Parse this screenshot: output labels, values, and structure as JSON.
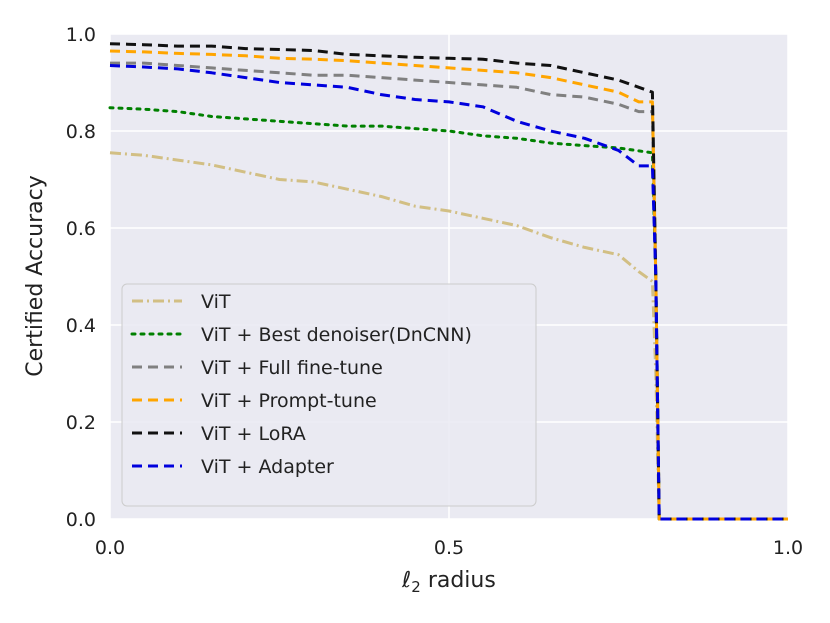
{
  "chart_data": {
    "type": "line",
    "title": "",
    "xlabel_var": "ℓ",
    "xlabel_sub": "2",
    "xlabel_rest": "radius",
    "ylabel": "Certified Accuracy",
    "xlim": [
      0.0,
      1.0
    ],
    "ylim": [
      0.0,
      1.0
    ],
    "xticks": [
      0.0,
      0.5,
      1.0
    ],
    "xtick_labels": [
      "0.0",
      "0.5",
      "1.0"
    ],
    "yticks": [
      0.0,
      0.2,
      0.4,
      0.6,
      0.8,
      1.0
    ],
    "ytick_labels": [
      "0.0",
      "0.2",
      "0.4",
      "0.6",
      "0.8",
      "1.0"
    ],
    "grid": true,
    "legend_position": "lower-left",
    "series": [
      {
        "name": "ViT",
        "color": "#d2bf84",
        "dash": "dashdot",
        "x": [
          0.0,
          0.05,
          0.1,
          0.15,
          0.2,
          0.25,
          0.3,
          0.35,
          0.4,
          0.45,
          0.5,
          0.55,
          0.6,
          0.65,
          0.7,
          0.75,
          0.78,
          0.8,
          0.805,
          0.81,
          1.0
        ],
        "y": [
          0.755,
          0.75,
          0.74,
          0.73,
          0.715,
          0.7,
          0.695,
          0.68,
          0.665,
          0.645,
          0.635,
          0.62,
          0.605,
          0.58,
          0.56,
          0.545,
          0.51,
          0.49,
          0.3,
          0.0,
          0.0
        ]
      },
      {
        "name": "ViT + Best denoiser(DnCNN)",
        "color": "#008000",
        "dash": "dotted",
        "x": [
          0.0,
          0.05,
          0.1,
          0.15,
          0.2,
          0.25,
          0.3,
          0.35,
          0.4,
          0.45,
          0.5,
          0.55,
          0.6,
          0.65,
          0.7,
          0.75,
          0.8,
          0.805,
          0.81,
          1.0
        ],
        "y": [
          0.848,
          0.845,
          0.84,
          0.83,
          0.825,
          0.82,
          0.815,
          0.81,
          0.81,
          0.805,
          0.8,
          0.79,
          0.785,
          0.775,
          0.77,
          0.765,
          0.755,
          0.5,
          0.0,
          0.0
        ]
      },
      {
        "name": "ViT + Full fine-tune",
        "color": "#808080",
        "dash": "dashed",
        "x": [
          0.0,
          0.05,
          0.1,
          0.15,
          0.2,
          0.25,
          0.3,
          0.35,
          0.4,
          0.45,
          0.5,
          0.55,
          0.6,
          0.65,
          0.7,
          0.75,
          0.78,
          0.8,
          0.805,
          0.81,
          1.0
        ],
        "y": [
          0.94,
          0.94,
          0.935,
          0.93,
          0.925,
          0.92,
          0.915,
          0.915,
          0.91,
          0.905,
          0.9,
          0.895,
          0.89,
          0.875,
          0.87,
          0.855,
          0.84,
          0.84,
          0.5,
          0.0,
          0.0
        ]
      },
      {
        "name": "ViT + Prompt-tune",
        "color": "#ffa500",
        "dash": "dashed",
        "x": [
          0.0,
          0.05,
          0.1,
          0.15,
          0.2,
          0.25,
          0.3,
          0.35,
          0.4,
          0.45,
          0.5,
          0.55,
          0.6,
          0.65,
          0.7,
          0.75,
          0.78,
          0.8,
          0.805,
          0.81,
          1.0
        ],
        "y": [
          0.965,
          0.963,
          0.96,
          0.958,
          0.955,
          0.95,
          0.948,
          0.945,
          0.94,
          0.935,
          0.93,
          0.925,
          0.92,
          0.91,
          0.895,
          0.88,
          0.86,
          0.86,
          0.5,
          0.0,
          0.0
        ]
      },
      {
        "name": "ViT + LoRA",
        "color": "#111111",
        "dash": "dashed",
        "x": [
          0.0,
          0.05,
          0.1,
          0.15,
          0.2,
          0.25,
          0.3,
          0.35,
          0.4,
          0.45,
          0.5,
          0.55,
          0.6,
          0.65,
          0.7,
          0.75,
          0.78,
          0.8,
          0.805,
          0.81,
          1.0
        ],
        "y": [
          0.98,
          0.978,
          0.975,
          0.975,
          0.97,
          0.968,
          0.966,
          0.958,
          0.955,
          0.952,
          0.95,
          0.948,
          0.94,
          0.935,
          0.92,
          0.905,
          0.89,
          0.88,
          0.5,
          0.0,
          0.0
        ]
      },
      {
        "name": "ViT + Adapter",
        "color": "#0000dd",
        "dash": "dashed",
        "x": [
          0.0,
          0.05,
          0.1,
          0.15,
          0.2,
          0.25,
          0.3,
          0.35,
          0.4,
          0.45,
          0.5,
          0.55,
          0.6,
          0.65,
          0.7,
          0.75,
          0.78,
          0.8,
          0.805,
          0.81,
          1.0
        ],
        "y": [
          0.935,
          0.932,
          0.928,
          0.92,
          0.91,
          0.9,
          0.895,
          0.89,
          0.875,
          0.865,
          0.86,
          0.85,
          0.82,
          0.8,
          0.785,
          0.76,
          0.728,
          0.728,
          0.5,
          0.0,
          0.0
        ]
      }
    ]
  }
}
